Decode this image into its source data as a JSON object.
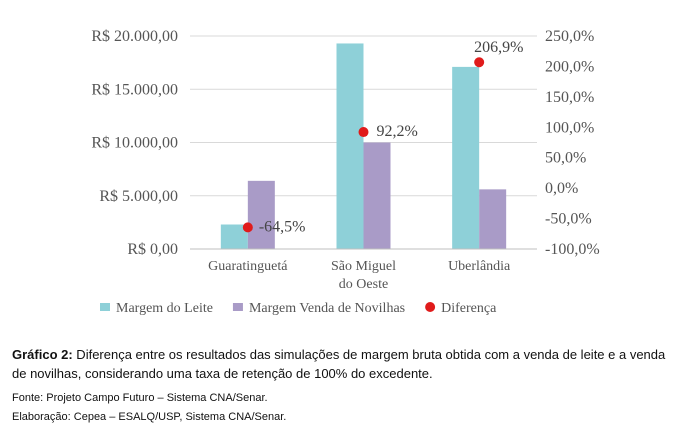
{
  "chart_data": {
    "type": "bar",
    "categories": [
      [
        "Guaratinguetá"
      ],
      [
        "São Miguel",
        "do Oeste"
      ],
      [
        "Uberlândia"
      ]
    ],
    "series": [
      {
        "name": "Margem do Leite",
        "axis": "left",
        "color": "#8ed0d8",
        "values": [
          2300,
          19300,
          17100
        ]
      },
      {
        "name": "Margem Venda de Novilhas",
        "axis": "left",
        "color": "#a99bc7",
        "values": [
          6400,
          10000,
          5600
        ]
      },
      {
        "name": "Diferença",
        "axis": "right",
        "type": "scatter",
        "color": "#e01b1b",
        "values": [
          -64.5,
          92.2,
          206.9
        ],
        "labels": [
          "-64,5%",
          "92,2%",
          "206,9%"
        ]
      }
    ],
    "left_axis": {
      "ylim": [
        0,
        20000
      ],
      "ticks": [
        0,
        5000,
        10000,
        15000,
        20000
      ],
      "tick_labels": [
        "R$ 0,00",
        "R$ 5.000,00",
        "R$ 10.000,00",
        "R$ 15.000,00",
        "R$ 20.000,00"
      ]
    },
    "right_axis": {
      "ylim": [
        -100,
        250
      ],
      "ticks": [
        -100,
        -50,
        0,
        50,
        100,
        150,
        200,
        250
      ],
      "tick_labels": [
        "-100,0%",
        "-50,0%",
        "0,0%",
        "50,0%",
        "100,0%",
        "150,0%",
        "200,0%",
        "250,0%"
      ]
    },
    "grid": true,
    "legend_position": "bottom"
  },
  "caption": {
    "label": "Gráfico 2:",
    "text": " Diferença entre os resultados das simulações de margem bruta obtida com a venda de leite e a venda de novilhas, considerando uma taxa de retenção de 100% do excedente.",
    "source": "Fonte: Projeto Campo Futuro – Sistema CNA/Senar.",
    "elaboration": "Elaboração: Cepea – ESALQ/USP, Sistema CNA/Senar."
  }
}
